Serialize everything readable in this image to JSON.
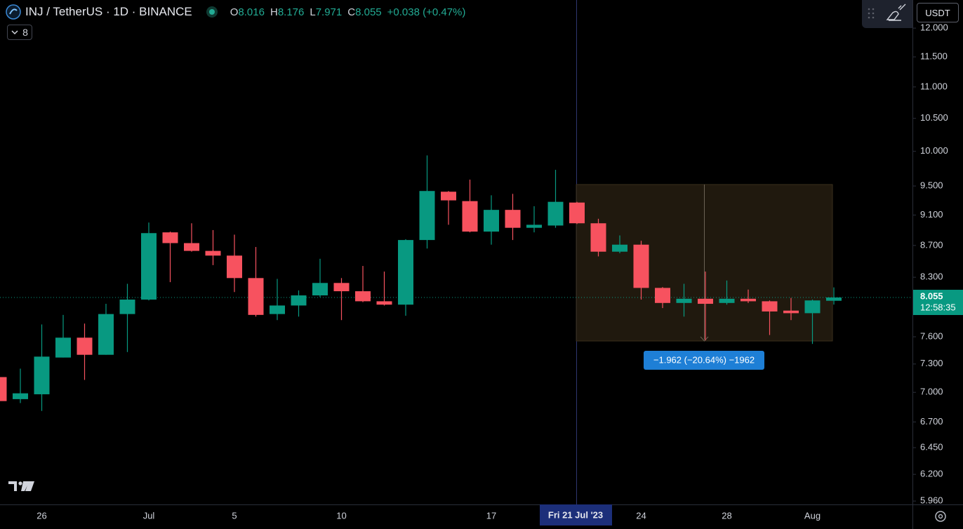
{
  "chart_data": {
    "type": "candlestick",
    "title": "INJ / TetherUS · 1D · BINANCE",
    "change_label": "+0.038 (+0.47%)",
    "indicator_count": 8,
    "currency": "USDT",
    "countdown": "12:58:35",
    "crosshair_label": "Fri 21 Jul '23",
    "measure_label": "−1.962 (−20.64%) −1962",
    "ohlc_keys": [
      "O",
      "H",
      "L",
      "C"
    ],
    "categories": [
      null,
      null,
      "26",
      null,
      null,
      null,
      null,
      "Jul",
      null,
      null,
      null,
      "5",
      null,
      null,
      null,
      null,
      "10",
      null,
      null,
      null,
      null,
      null,
      null,
      "17",
      null,
      null,
      null,
      null,
      null,
      null,
      "24",
      null,
      null,
      null,
      "28",
      null,
      null,
      null,
      "Aug",
      null
    ],
    "open": [
      7.16,
      6.93,
      6.98,
      7.37,
      7.59,
      7.4,
      7.86,
      8.03,
      8.87,
      8.73,
      8.63,
      8.57,
      8.29,
      7.86,
      7.96,
      8.08,
      8.23,
      8.13,
      8.01,
      7.97,
      8.77,
      9.42,
      9.29,
      8.88,
      9.17,
      8.93,
      8.96,
      9.27,
      8.99,
      8.62,
      8.71,
      8.17,
      7.99,
      8.04,
      7.99,
      8.04,
      8.01,
      7.9,
      7.87,
      8.016
    ],
    "high": [
      7.2,
      7.25,
      7.74,
      7.85,
      7.75,
      7.98,
      8.22,
      9.0,
      8.88,
      8.99,
      8.9,
      8.84,
      8.68,
      8.28,
      8.14,
      8.53,
      8.29,
      8.44,
      8.37,
      8.78,
      9.94,
      9.43,
      9.59,
      9.37,
      9.39,
      9.22,
      9.73,
      9.28,
      9.05,
      8.83,
      8.76,
      8.18,
      8.22,
      8.37,
      8.26,
      8.15,
      8.02,
      8.05,
      8.03,
      8.176
    ],
    "low": [
      6.88,
      6.89,
      6.81,
      7.37,
      7.13,
      7.4,
      7.43,
      8.02,
      8.24,
      8.62,
      8.45,
      8.12,
      7.83,
      7.79,
      7.83,
      8.06,
      7.79,
      8.0,
      7.96,
      7.84,
      8.66,
      8.97,
      8.87,
      8.71,
      8.77,
      8.87,
      8.93,
      8.98,
      8.56,
      8.6,
      8.03,
      7.93,
      7.83,
      7.56,
      7.97,
      7.99,
      7.62,
      7.79,
      7.52,
      7.971
    ],
    "close": [
      6.91,
      6.99,
      7.38,
      7.59,
      7.4,
      7.86,
      8.03,
      8.86,
      8.73,
      8.63,
      8.57,
      8.29,
      7.85,
      7.96,
      8.08,
      8.23,
      8.13,
      8.01,
      7.97,
      8.77,
      9.43,
      9.3,
      8.88,
      9.17,
      8.93,
      8.97,
      9.28,
      8.99,
      8.62,
      8.71,
      8.17,
      7.99,
      8.04,
      7.98,
      8.04,
      8.01,
      7.89,
      7.87,
      8.02,
      8.055
    ],
    "up_color": "#089981",
    "down_color": "#f7525f",
    "log_scale": true,
    "grid": false,
    "ylim": [
      5.93,
      12.51
    ],
    "yticks": [
      {
        "value": 12,
        "label": "12.000"
      },
      {
        "value": 11.5,
        "label": "11.500"
      },
      {
        "value": 11,
        "label": "11.000"
      },
      {
        "value": 10.5,
        "label": "10.500"
      },
      {
        "value": 10,
        "label": "10.000"
      },
      {
        "value": 9.5,
        "label": "9.500"
      },
      {
        "value": 9.1,
        "label": "9.100"
      },
      {
        "value": 8.7,
        "label": "8.700"
      },
      {
        "value": 8.3,
        "label": "8.300"
      },
      {
        "value": 7.6,
        "label": "7.600"
      },
      {
        "value": 7.3,
        "label": "7.300"
      },
      {
        "value": 7,
        "label": "7.000"
      },
      {
        "value": 6.7,
        "label": "6.700"
      },
      {
        "value": 6.45,
        "label": "6.450"
      },
      {
        "value": 6.2,
        "label": "6.200"
      },
      {
        "value": 5.96,
        "label": "5.960"
      }
    ]
  }
}
